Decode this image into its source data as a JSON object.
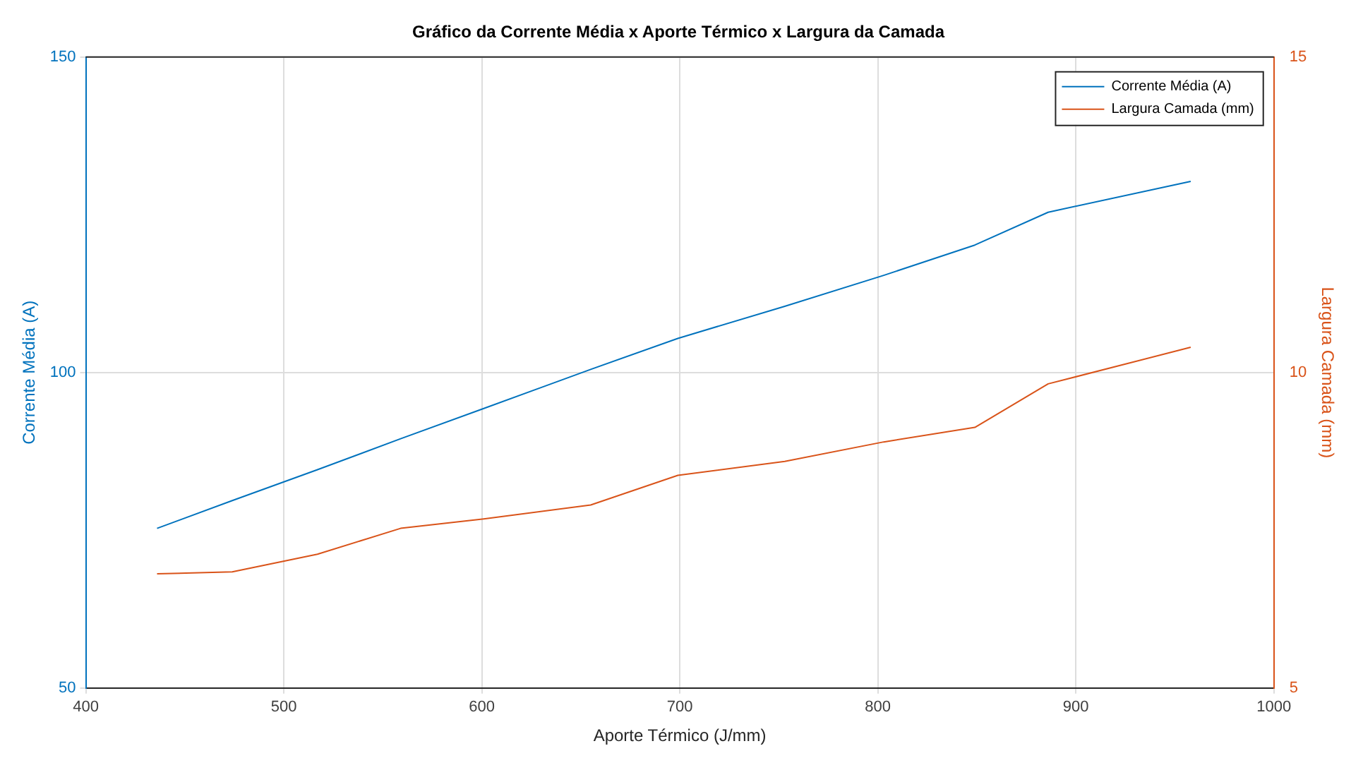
{
  "chart_data": {
    "type": "line",
    "title": "Gráfico da Corrente Média x Aporte Térmico x Largura da Camada",
    "xlabel": "Aporte Térmico (J/mm)",
    "ylabel": "Corrente Média (A)",
    "y2label": "Largura Camada (mm)",
    "x": [
      436,
      474,
      517,
      559,
      601,
      655,
      699,
      753,
      803,
      849,
      886,
      958
    ],
    "series": [
      {
        "name": "Corrente Média (A)",
        "color": "#0072bd",
        "values": [
          75.3,
          79.7,
          84.6,
          89.5,
          94.3,
          100.5,
          105.4,
          110.5,
          115.4,
          120.2,
          125.4,
          130.3
        ]
      },
      {
        "name": "Largura Camada (mm)",
        "color": "#d95319",
        "axis": "y2",
        "values": [
          6.81,
          6.84,
          7.12,
          7.53,
          7.68,
          7.9,
          8.37,
          8.59,
          8.9,
          9.13,
          9.82,
          10.4
        ]
      }
    ],
    "xlim": [
      400,
      1000
    ],
    "xticks": [
      400,
      500,
      600,
      700,
      800,
      900,
      1000
    ],
    "ylim": [
      50,
      150
    ],
    "yticks": [
      50,
      100,
      150
    ],
    "y2lim": [
      5,
      15
    ],
    "y2ticks": [
      5,
      10,
      15
    ],
    "grid": true,
    "legend": "top right",
    "marker": "none",
    "line_style": "solid"
  }
}
